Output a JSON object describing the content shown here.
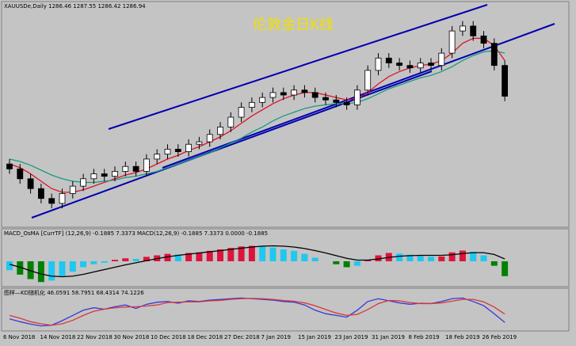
{
  "chart_data": [
    {
      "type": "candlestick",
      "label": "XAUUSDe,Daily  1286.46 1287.55 1286.42 1286.94",
      "title": "伦敦金日K线",
      "ylim": [
        1180,
        1360
      ],
      "open": [
        1232,
        1228,
        1220,
        1212,
        1204,
        1200,
        1208,
        1214,
        1220,
        1224,
        1222,
        1226,
        1230,
        1226,
        1236,
        1240,
        1244,
        1242,
        1248,
        1250,
        1256,
        1262,
        1270,
        1278,
        1282,
        1286,
        1290,
        1288,
        1292,
        1290,
        1286,
        1284,
        1282,
        1280,
        1292,
        1308,
        1318,
        1314,
        1312,
        1310,
        1314,
        1312,
        1322,
        1340,
        1344,
        1336,
        1330,
        1312
      ],
      "high": [
        1236,
        1232,
        1224,
        1216,
        1208,
        1212,
        1218,
        1224,
        1228,
        1228,
        1230,
        1234,
        1234,
        1240,
        1244,
        1248,
        1248,
        1252,
        1254,
        1260,
        1266,
        1274,
        1282,
        1286,
        1290,
        1294,
        1294,
        1296,
        1296,
        1294,
        1290,
        1288,
        1286,
        1296,
        1312,
        1322,
        1322,
        1318,
        1316,
        1318,
        1318,
        1326,
        1344,
        1348,
        1348,
        1340,
        1334,
        1316
      ],
      "low": [
        1224,
        1216,
        1208,
        1200,
        1196,
        1196,
        1204,
        1210,
        1216,
        1218,
        1218,
        1222,
        1222,
        1222,
        1232,
        1236,
        1238,
        1238,
        1244,
        1246,
        1252,
        1258,
        1266,
        1274,
        1278,
        1282,
        1284,
        1284,
        1286,
        1282,
        1280,
        1278,
        1276,
        1276,
        1288,
        1304,
        1310,
        1308,
        1306,
        1306,
        1308,
        1308,
        1318,
        1336,
        1332,
        1326,
        1308,
        1283
      ],
      "close": [
        1228,
        1220,
        1212,
        1204,
        1200,
        1208,
        1214,
        1220,
        1224,
        1222,
        1226,
        1230,
        1226,
        1236,
        1240,
        1244,
        1242,
        1248,
        1250,
        1256,
        1262,
        1270,
        1278,
        1282,
        1286,
        1290,
        1288,
        1292,
        1290,
        1286,
        1284,
        1282,
        1280,
        1292,
        1308,
        1318,
        1314,
        1312,
        1310,
        1314,
        1312,
        1322,
        1340,
        1344,
        1336,
        1330,
        1312,
        1287
      ],
      "up_color": "#ffffff",
      "down_color": "#000000",
      "lines": [
        {
          "color": "#e0102a",
          "values": [
            1232,
            1229,
            1224,
            1218,
            1212,
            1209,
            1209,
            1211,
            1214,
            1217,
            1220,
            1223,
            1225,
            1228,
            1232,
            1236,
            1239,
            1243,
            1246,
            1250,
            1254,
            1259,
            1265,
            1271,
            1276,
            1281,
            1285,
            1288,
            1290,
            1290,
            1288,
            1286,
            1284,
            1285,
            1290,
            1297,
            1303,
            1307,
            1310,
            1312,
            1313,
            1316,
            1322,
            1330,
            1334,
            1334,
            1328,
            1316
          ]
        },
        {
          "color": "#1a9a80",
          "values": [
            1236,
            1234,
            1231,
            1227,
            1223,
            1220,
            1218,
            1217,
            1217,
            1218,
            1219,
            1221,
            1222,
            1224,
            1226,
            1229,
            1232,
            1235,
            1238,
            1241,
            1245,
            1249,
            1253,
            1258,
            1262,
            1267,
            1271,
            1274,
            1277,
            1279,
            1280,
            1281,
            1281,
            1282,
            1285,
            1289,
            1293,
            1296,
            1299,
            1302,
            1304,
            1307,
            1311,
            1316,
            1320,
            1323,
            1324,
            1322
          ]
        }
      ]
    },
    {
      "type": "bar",
      "label": "MACD_OsMA [CurrTF] (12,26,9) -0.1885 7.3373  MACD(12,26,9) -0.1885 7.3373 0.0000 -0.1885",
      "ylim": [
        -8,
        8
      ],
      "values": [
        -3,
        -4.5,
        -6,
        -7,
        -6.5,
        -5,
        -3.5,
        -2,
        -1,
        -0.5,
        0.5,
        1,
        0.8,
        1.5,
        2,
        2.5,
        2.3,
        2.8,
        3,
        3.5,
        4,
        4.5,
        5,
        5.2,
        5,
        4.6,
        4,
        3.5,
        2.5,
        1.2,
        0,
        -1,
        -2,
        -1.5,
        0.5,
        2,
        2.8,
        2.6,
        2.2,
        1.8,
        1.5,
        1.6,
        3,
        3.6,
        3.2,
        2,
        -1.5,
        -5
      ],
      "rise_color": "#dc143c",
      "fall_color": "#1ec8f0",
      "neg_color": "#008000",
      "line": {
        "color": "#000000",
        "values": [
          -1,
          -2,
          -3.2,
          -4.3,
          -5,
          -5.2,
          -5,
          -4.4,
          -3.6,
          -2.8,
          -2,
          -1.2,
          -0.5,
          0.2,
          0.9,
          1.5,
          2,
          2.4,
          2.8,
          3.2,
          3.6,
          4,
          4.4,
          4.8,
          5.1,
          5.2,
          5.1,
          4.8,
          4.3,
          3.6,
          2.8,
          1.9,
          1,
          0.4,
          0.4,
          0.8,
          1.3,
          1.7,
          1.9,
          2,
          2,
          2,
          2.2,
          2.6,
          2.9,
          2.9,
          2.3,
          0.8
        ]
      }
    },
    {
      "type": "line",
      "label": "图样—KD随机化 46.0591 58.7951 68.4314 74.1226",
      "ylim": [
        0,
        100
      ],
      "series": [
        {
          "color": "#3838d8",
          "values": [
            30,
            22,
            15,
            10,
            12,
            25,
            40,
            55,
            62,
            58,
            65,
            70,
            60,
            72,
            78,
            80,
            75,
            82,
            80,
            84,
            86,
            88,
            90,
            88,
            86,
            84,
            80,
            78,
            70,
            55,
            45,
            40,
            35,
            55,
            80,
            88,
            82,
            76,
            72,
            75,
            74,
            80,
            88,
            90,
            80,
            68,
            45,
            20
          ]
        },
        {
          "color": "#d83838",
          "values": [
            40,
            32,
            22,
            16,
            12,
            16,
            26,
            40,
            52,
            58,
            62,
            64,
            65,
            67,
            70,
            77,
            78,
            79,
            79,
            82,
            83,
            86,
            88,
            89,
            88,
            86,
            83,
            81,
            76,
            68,
            57,
            47,
            40,
            43,
            57,
            74,
            83,
            82,
            77,
            74,
            74,
            76,
            81,
            86,
            86,
            79,
            64,
            44
          ]
        }
      ],
      "x_labels": [
        "6 Nov 2018",
        "14 Nov 2018",
        "22 Nov 2018",
        "30 Nov 2018",
        "10 Dec 2018",
        "18 Dec 2018",
        "27 Dec 2018",
        "7 Jan 2019",
        "15 Jan 2019",
        "23 Jan 2019",
        "31 Jan 2019",
        "8 Feb 2019",
        "18 Feb 2019",
        "26 Feb 2019"
      ]
    }
  ]
}
